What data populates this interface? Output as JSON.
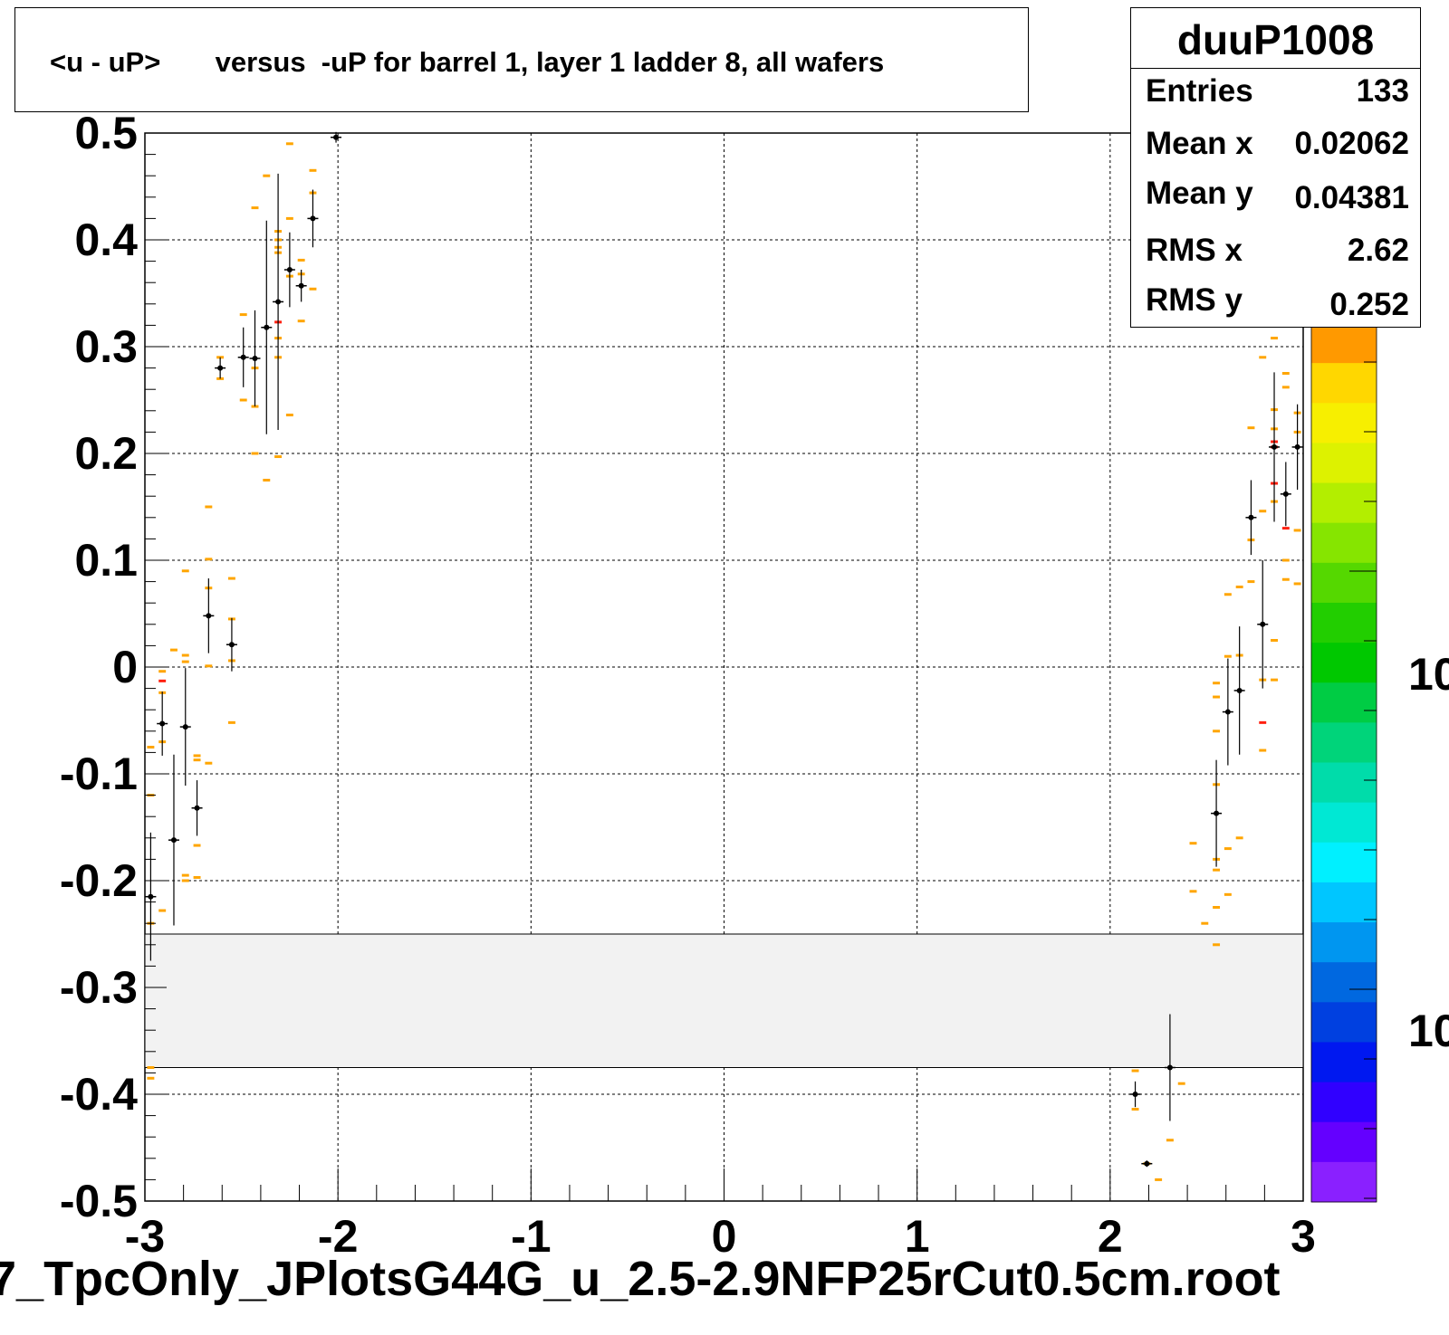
{
  "title": "<u - uP>       versus  -uP for barrel 1, layer 1 ladder 8, all wafers",
  "x_axis_title": "7_TpcOnly_JPlotsG44G_u_2.5-2.9NFP25rCut0.5cm.root",
  "stats": {
    "name": "duuP1008",
    "rows": [
      {
        "label": "Entries",
        "value": "133"
      },
      {
        "label": "Mean x",
        "value": "0.02062"
      },
      {
        "label": "Mean y",
        "value": "0.04381"
      },
      {
        "label": "RMS x",
        "value": "2.62"
      },
      {
        "label": "RMS y",
        "value": "0.252"
      }
    ]
  },
  "palette_labels": [
    "10",
    "10"
  ],
  "colors": {
    "profile_points": "#000000",
    "bins_orange": "#ffa500",
    "bins_red": "#ff2010",
    "band_fill": "#f2f2f2"
  },
  "chart_data": {
    "type": "scatter",
    "xlim": [
      -3,
      3
    ],
    "ylim": [
      -0.5,
      0.5
    ],
    "x_ticks": [
      "-3",
      "-2",
      "-1",
      "0",
      "1",
      "2",
      "3"
    ],
    "y_ticks": [
      "0.5",
      "0.4",
      "0.3",
      "0.2",
      "0.1",
      "0",
      "-0.1",
      "-0.2",
      "-0.3",
      "-0.4",
      "-0.5"
    ],
    "grid": true,
    "band": {
      "y_low": -0.375,
      "y_high": -0.25
    },
    "profile": [
      {
        "x": -2.97,
        "y": -0.215,
        "err": 0.06
      },
      {
        "x": -2.91,
        "y": -0.053,
        "err": 0.03
      },
      {
        "x": -2.85,
        "y": -0.162,
        "err": 0.08
      },
      {
        "x": -2.79,
        "y": -0.056,
        "err": 0.055
      },
      {
        "x": -2.73,
        "y": -0.132,
        "err": 0.026
      },
      {
        "x": -2.67,
        "y": 0.048,
        "err": 0.035
      },
      {
        "x": -2.61,
        "y": 0.28,
        "err": 0.01
      },
      {
        "x": -2.55,
        "y": 0.021,
        "err": 0.025
      },
      {
        "x": -2.49,
        "y": 0.29,
        "err": 0.028
      },
      {
        "x": -2.43,
        "y": 0.289,
        "err": 0.045
      },
      {
        "x": -2.37,
        "y": 0.318,
        "err": 0.1
      },
      {
        "x": -2.31,
        "y": 0.342,
        "err": 0.12
      },
      {
        "x": -2.25,
        "y": 0.372,
        "err": 0.035
      },
      {
        "x": -2.19,
        "y": 0.357,
        "err": 0.015
      },
      {
        "x": -2.13,
        "y": 0.42,
        "err": 0.027
      },
      {
        "x": -2.01,
        "y": 0.496,
        "err": 0.005
      },
      {
        "x": 2.13,
        "y": -0.4,
        "err": 0.012
      },
      {
        "x": 2.19,
        "y": -0.465,
        "err": 0.003
      },
      {
        "x": 2.31,
        "y": -0.375,
        "err": 0.05
      },
      {
        "x": 2.55,
        "y": -0.137,
        "err": 0.05
      },
      {
        "x": 2.61,
        "y": -0.042,
        "err": 0.05
      },
      {
        "x": 2.67,
        "y": -0.022,
        "err": 0.06
      },
      {
        "x": 2.73,
        "y": 0.14,
        "err": 0.035
      },
      {
        "x": 2.79,
        "y": 0.04,
        "err": 0.06
      },
      {
        "x": 2.85,
        "y": 0.206,
        "err": 0.07
      },
      {
        "x": 2.91,
        "y": 0.162,
        "err": 0.03
      },
      {
        "x": 2.97,
        "y": 0.206,
        "err": 0.04
      }
    ],
    "bins": [
      {
        "x": -2.97,
        "y": -0.12,
        "c": "o"
      },
      {
        "x": -2.97,
        "y": -0.075,
        "c": "o"
      },
      {
        "x": -2.97,
        "y": -0.24,
        "c": "o"
      },
      {
        "x": -2.97,
        "y": -0.385,
        "c": "o"
      },
      {
        "x": -2.97,
        "y": -0.375,
        "c": "o"
      },
      {
        "x": -2.91,
        "y": -0.004,
        "c": "o"
      },
      {
        "x": -2.91,
        "y": -0.013,
        "c": "r"
      },
      {
        "x": -2.91,
        "y": -0.024,
        "c": "o"
      },
      {
        "x": -2.91,
        "y": -0.07,
        "c": "o"
      },
      {
        "x": -2.91,
        "y": -0.228,
        "c": "o"
      },
      {
        "x": -2.85,
        "y": 0.016,
        "c": "o"
      },
      {
        "x": -2.79,
        "y": 0.09,
        "c": "o"
      },
      {
        "x": -2.79,
        "y": 0.011,
        "c": "o"
      },
      {
        "x": -2.79,
        "y": 0.005,
        "c": "o"
      },
      {
        "x": -2.79,
        "y": -0.195,
        "c": "o"
      },
      {
        "x": -2.79,
        "y": -0.2,
        "c": "o"
      },
      {
        "x": -2.73,
        "y": -0.083,
        "c": "o"
      },
      {
        "x": -2.73,
        "y": -0.087,
        "c": "o"
      },
      {
        "x": -2.73,
        "y": -0.167,
        "c": "o"
      },
      {
        "x": -2.73,
        "y": -0.197,
        "c": "o"
      },
      {
        "x": -2.67,
        "y": 0.15,
        "c": "o"
      },
      {
        "x": -2.67,
        "y": 0.101,
        "c": "o"
      },
      {
        "x": -2.67,
        "y": 0.074,
        "c": "o"
      },
      {
        "x": -2.67,
        "y": 0.001,
        "c": "o"
      },
      {
        "x": -2.67,
        "y": -0.09,
        "c": "o"
      },
      {
        "x": -2.61,
        "y": 0.29,
        "c": "o"
      },
      {
        "x": -2.61,
        "y": 0.27,
        "c": "o"
      },
      {
        "x": -2.55,
        "y": 0.083,
        "c": "o"
      },
      {
        "x": -2.55,
        "y": 0.045,
        "c": "o"
      },
      {
        "x": -2.55,
        "y": 0.006,
        "c": "o"
      },
      {
        "x": -2.55,
        "y": -0.052,
        "c": "o"
      },
      {
        "x": -2.49,
        "y": 0.33,
        "c": "o"
      },
      {
        "x": -2.49,
        "y": 0.25,
        "c": "o"
      },
      {
        "x": -2.43,
        "y": 0.28,
        "c": "o"
      },
      {
        "x": -2.43,
        "y": 0.244,
        "c": "o"
      },
      {
        "x": -2.43,
        "y": 0.2,
        "c": "o"
      },
      {
        "x": -2.43,
        "y": 0.43,
        "c": "o"
      },
      {
        "x": -2.37,
        "y": 0.46,
        "c": "o"
      },
      {
        "x": -2.37,
        "y": 0.175,
        "c": "o"
      },
      {
        "x": -2.31,
        "y": 0.408,
        "c": "o"
      },
      {
        "x": -2.31,
        "y": 0.4,
        "c": "o"
      },
      {
        "x": -2.31,
        "y": 0.393,
        "c": "o"
      },
      {
        "x": -2.31,
        "y": 0.388,
        "c": "o"
      },
      {
        "x": -2.31,
        "y": 0.323,
        "c": "r"
      },
      {
        "x": -2.31,
        "y": 0.308,
        "c": "o"
      },
      {
        "x": -2.31,
        "y": 0.29,
        "c": "o"
      },
      {
        "x": -2.31,
        "y": 0.197,
        "c": "o"
      },
      {
        "x": -2.25,
        "y": 0.49,
        "c": "o"
      },
      {
        "x": -2.25,
        "y": 0.42,
        "c": "o"
      },
      {
        "x": -2.25,
        "y": 0.366,
        "c": "o"
      },
      {
        "x": -2.25,
        "y": 0.236,
        "c": "o"
      },
      {
        "x": -2.19,
        "y": 0.381,
        "c": "o"
      },
      {
        "x": -2.19,
        "y": 0.368,
        "c": "o"
      },
      {
        "x": -2.19,
        "y": 0.324,
        "c": "o"
      },
      {
        "x": -2.13,
        "y": 0.465,
        "c": "o"
      },
      {
        "x": -2.13,
        "y": 0.444,
        "c": "o"
      },
      {
        "x": -2.13,
        "y": 0.354,
        "c": "o"
      },
      {
        "x": 2.13,
        "y": -0.378,
        "c": "o"
      },
      {
        "x": 2.13,
        "y": -0.414,
        "c": "o"
      },
      {
        "x": 2.19,
        "y": -0.465,
        "c": "o"
      },
      {
        "x": 2.25,
        "y": -0.48,
        "c": "o"
      },
      {
        "x": 2.31,
        "y": -0.443,
        "c": "o"
      },
      {
        "x": 2.37,
        "y": -0.39,
        "c": "o"
      },
      {
        "x": 2.43,
        "y": -0.165,
        "c": "o"
      },
      {
        "x": 2.43,
        "y": -0.21,
        "c": "o"
      },
      {
        "x": 2.49,
        "y": -0.24,
        "c": "o"
      },
      {
        "x": 2.55,
        "y": -0.18,
        "c": "o"
      },
      {
        "x": 2.55,
        "y": -0.19,
        "c": "o"
      },
      {
        "x": 2.55,
        "y": -0.26,
        "c": "o"
      },
      {
        "x": 2.61,
        "y": -0.17,
        "c": "o"
      },
      {
        "x": 2.61,
        "y": -0.213,
        "c": "o"
      },
      {
        "x": 2.55,
        "y": -0.015,
        "c": "o"
      },
      {
        "x": 2.55,
        "y": -0.028,
        "c": "o"
      },
      {
        "x": 2.55,
        "y": -0.06,
        "c": "o"
      },
      {
        "x": 2.55,
        "y": -0.11,
        "c": "o"
      },
      {
        "x": 2.55,
        "y": -0.225,
        "c": "o"
      },
      {
        "x": 2.61,
        "y": 0.01,
        "c": "o"
      },
      {
        "x": 2.61,
        "y": 0.068,
        "c": "o"
      },
      {
        "x": 2.67,
        "y": 0.075,
        "c": "o"
      },
      {
        "x": 2.67,
        "y": 0.011,
        "c": "o"
      },
      {
        "x": 2.67,
        "y": -0.16,
        "c": "o"
      },
      {
        "x": 2.73,
        "y": 0.224,
        "c": "o"
      },
      {
        "x": 2.73,
        "y": 0.08,
        "c": "o"
      },
      {
        "x": 2.73,
        "y": 0.119,
        "c": "o"
      },
      {
        "x": 2.79,
        "y": 0.146,
        "c": "o"
      },
      {
        "x": 2.79,
        "y": -0.012,
        "c": "o"
      },
      {
        "x": 2.79,
        "y": -0.052,
        "c": "r"
      },
      {
        "x": 2.79,
        "y": -0.078,
        "c": "o"
      },
      {
        "x": 2.85,
        "y": 0.308,
        "c": "o"
      },
      {
        "x": 2.79,
        "y": 0.29,
        "c": "o"
      },
      {
        "x": 2.85,
        "y": 0.241,
        "c": "o"
      },
      {
        "x": 2.85,
        "y": 0.223,
        "c": "o"
      },
      {
        "x": 2.85,
        "y": 0.211,
        "c": "r"
      },
      {
        "x": 2.85,
        "y": 0.206,
        "c": "r"
      },
      {
        "x": 2.85,
        "y": 0.172,
        "c": "r"
      },
      {
        "x": 2.85,
        "y": 0.155,
        "c": "o"
      },
      {
        "x": 2.85,
        "y": 0.025,
        "c": "o"
      },
      {
        "x": 2.85,
        "y": -0.012,
        "c": "o"
      },
      {
        "x": 2.91,
        "y": 0.275,
        "c": "o"
      },
      {
        "x": 2.91,
        "y": 0.262,
        "c": "o"
      },
      {
        "x": 2.91,
        "y": 0.13,
        "c": "r"
      },
      {
        "x": 2.91,
        "y": 0.1,
        "c": "o"
      },
      {
        "x": 2.91,
        "y": 0.082,
        "c": "o"
      },
      {
        "x": 2.97,
        "y": 0.238,
        "c": "o"
      },
      {
        "x": 2.97,
        "y": 0.22,
        "c": "o"
      },
      {
        "x": 2.97,
        "y": 0.128,
        "c": "o"
      },
      {
        "x": 2.97,
        "y": 0.078,
        "c": "o"
      }
    ]
  }
}
